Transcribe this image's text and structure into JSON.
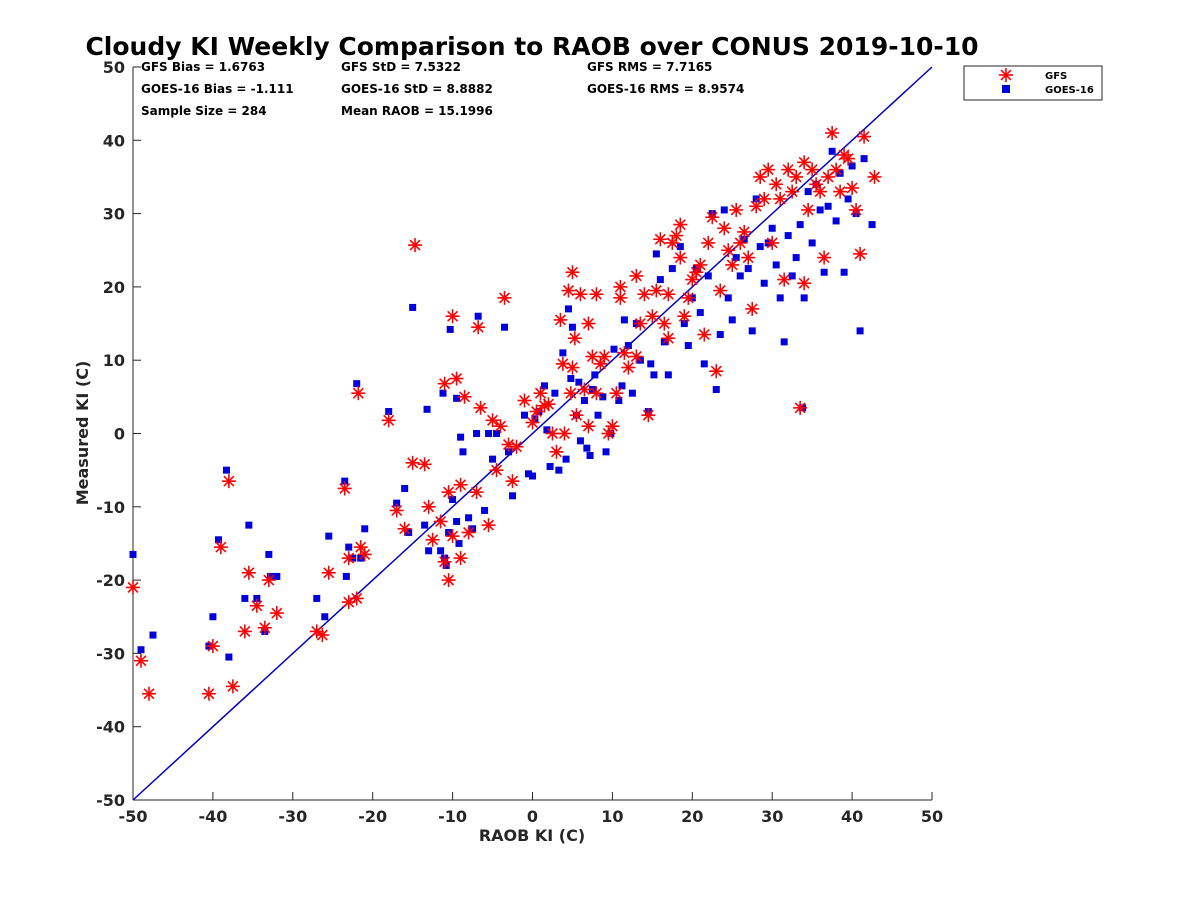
{
  "chart_data": {
    "type": "scatter",
    "title": "Cloudy KI Weekly Comparison to RAOB over CONUS 2019-10-10",
    "xlabel": "RAOB KI (C)",
    "ylabel": "Measured KI (C)",
    "xlim": [
      -50,
      50
    ],
    "ylim": [
      -50,
      50
    ],
    "x_ticks": [
      "-50",
      "-40",
      "-30",
      "-20",
      "-10",
      "0",
      "10",
      "20",
      "30",
      "40",
      "50"
    ],
    "y_ticks": [
      "50",
      "40",
      "30",
      "20",
      "10",
      "0",
      "-10",
      "-20",
      "-30",
      "-40",
      "-50"
    ],
    "legend_position": "outside-top-right",
    "stats": {
      "gfs_bias": "GFS Bias = 1.6763",
      "gfs_std": "GFS StD = 7.5322",
      "gfs_rms": "GFS RMS = 7.7165",
      "goes_bias": "GOES-16 Bias = -1.111",
      "goes_std": "GOES-16 StD = 8.8882",
      "goes_rms": "GOES-16 RMS = 8.9574",
      "sample_size": "Sample Size = 284",
      "mean_raob": "Mean RAOB = 15.1996"
    },
    "reference_line": {
      "x": [
        -50,
        50
      ],
      "y": [
        -50,
        50
      ],
      "color": "#0000cc"
    },
    "series": [
      {
        "name": "GFS",
        "marker": "asterisk",
        "color": "#ff0000",
        "points": [
          [
            -50,
            -21
          ],
          [
            -49,
            -31
          ],
          [
            -48,
            -35.5
          ],
          [
            -40.5,
            -35.5
          ],
          [
            -40,
            -29
          ],
          [
            -39,
            -15.5
          ],
          [
            -38,
            -6.5
          ],
          [
            -37.5,
            -34.5
          ],
          [
            -36,
            -27
          ],
          [
            -35.5,
            -19
          ],
          [
            -34.5,
            -23.5
          ],
          [
            -33.5,
            -26.5
          ],
          [
            -33,
            -20
          ],
          [
            -32,
            -24.5
          ],
          [
            -27,
            -27
          ],
          [
            -26.3,
            -27.5
          ],
          [
            -25.5,
            -19
          ],
          [
            -23.5,
            -7.5
          ],
          [
            -23,
            -17
          ],
          [
            -23,
            -23
          ],
          [
            -22,
            -22.5
          ],
          [
            -21.8,
            5.5
          ],
          [
            -21.5,
            -15.5
          ],
          [
            -21,
            -16.5
          ],
          [
            -18,
            1.8
          ],
          [
            -17,
            -10.5
          ],
          [
            -16,
            -13
          ],
          [
            -15,
            -4
          ],
          [
            -14.7,
            25.7
          ],
          [
            -13.5,
            -4.2
          ],
          [
            -13,
            -10
          ],
          [
            -12.5,
            -14.5
          ],
          [
            -11.5,
            -12
          ],
          [
            -11,
            -17.5
          ],
          [
            -11,
            6.8
          ],
          [
            -10.5,
            -20
          ],
          [
            -10.5,
            -8
          ],
          [
            -10,
            16
          ],
          [
            -10,
            -14
          ],
          [
            -9.5,
            7.5
          ],
          [
            -9,
            -17
          ],
          [
            -9,
            -7
          ],
          [
            -8.5,
            5
          ],
          [
            -8,
            -13.5
          ],
          [
            -7,
            -8
          ],
          [
            -6.8,
            14.5
          ],
          [
            -6.5,
            3.5
          ],
          [
            -5.5,
            -12.5
          ],
          [
            -5,
            1.8
          ],
          [
            -4.5,
            -5
          ],
          [
            -4,
            1
          ],
          [
            -3.5,
            18.5
          ],
          [
            -3,
            -1.5
          ],
          [
            -2.5,
            -6.5
          ],
          [
            -2,
            -1.8
          ],
          [
            -1,
            4.5
          ],
          [
            0,
            1.5
          ],
          [
            0.5,
            3
          ],
          [
            1,
            5.5
          ],
          [
            1.5,
            3.8
          ],
          [
            2,
            4
          ],
          [
            2.5,
            0
          ],
          [
            3,
            -2.5
          ],
          [
            3.5,
            15.5
          ],
          [
            3.8,
            9.5
          ],
          [
            4,
            0
          ],
          [
            4.5,
            19.5
          ],
          [
            4.8,
            5.5
          ],
          [
            5,
            22
          ],
          [
            5,
            9
          ],
          [
            5.3,
            13
          ],
          [
            5.5,
            2.5
          ],
          [
            6,
            19
          ],
          [
            6.5,
            6
          ],
          [
            7,
            1
          ],
          [
            7,
            15
          ],
          [
            7.5,
            10.5
          ],
          [
            8,
            19
          ],
          [
            8,
            5.5
          ],
          [
            8.5,
            9.5
          ],
          [
            9,
            10.5
          ],
          [
            9.5,
            0
          ],
          [
            10,
            1
          ],
          [
            10.5,
            5.5
          ],
          [
            11,
            18.5
          ],
          [
            11,
            20
          ],
          [
            11.5,
            11
          ],
          [
            12,
            9
          ],
          [
            13,
            21.5
          ],
          [
            13,
            10.5
          ],
          [
            13.5,
            15
          ],
          [
            14,
            19
          ],
          [
            14.5,
            2.5
          ],
          [
            15,
            16
          ],
          [
            15.5,
            19.5
          ],
          [
            16,
            26.5
          ],
          [
            16.5,
            15
          ],
          [
            17,
            13
          ],
          [
            17,
            19
          ],
          [
            17.5,
            26
          ],
          [
            18,
            27
          ],
          [
            18.5,
            28.5
          ],
          [
            18.5,
            24
          ],
          [
            19,
            16
          ],
          [
            19.5,
            18.5
          ],
          [
            20,
            21
          ],
          [
            20.5,
            22
          ],
          [
            21,
            23
          ],
          [
            21.5,
            13.5
          ],
          [
            22,
            26
          ],
          [
            22.5,
            29.5
          ],
          [
            23,
            8.5
          ],
          [
            23.5,
            19.5
          ],
          [
            24,
            28
          ],
          [
            24.5,
            25
          ],
          [
            25,
            23
          ],
          [
            25.5,
            30.5
          ],
          [
            26,
            26
          ],
          [
            26.5,
            27.5
          ],
          [
            27,
            24
          ],
          [
            27.5,
            17
          ],
          [
            28,
            31
          ],
          [
            28.5,
            35
          ],
          [
            29,
            32
          ],
          [
            29.5,
            36
          ],
          [
            30,
            26
          ],
          [
            30.5,
            34
          ],
          [
            31,
            32
          ],
          [
            31.5,
            21
          ],
          [
            32,
            36
          ],
          [
            32.5,
            33
          ],
          [
            33,
            35
          ],
          [
            33.5,
            3.5
          ],
          [
            34,
            37
          ],
          [
            34,
            20.5
          ],
          [
            34.5,
            30.5
          ],
          [
            35,
            36
          ],
          [
            35.5,
            34
          ],
          [
            36,
            33
          ],
          [
            36.5,
            24
          ],
          [
            37,
            35
          ],
          [
            37.5,
            41
          ],
          [
            38,
            36
          ],
          [
            38.5,
            33
          ],
          [
            39,
            38
          ],
          [
            39.5,
            37.5
          ],
          [
            40,
            33.5
          ],
          [
            40.5,
            30.5
          ],
          [
            41,
            24.5
          ],
          [
            41.5,
            40.5
          ],
          [
            42.8,
            35
          ]
        ]
      },
      {
        "name": "GOES-16",
        "marker": "square",
        "color": "#0000dd",
        "points": [
          [
            -50,
            -16.5
          ],
          [
            -49,
            -29.5
          ],
          [
            -47.5,
            -27.5
          ],
          [
            -40.5,
            -29
          ],
          [
            -40,
            -25
          ],
          [
            -39.3,
            -14.5
          ],
          [
            -38.3,
            -5
          ],
          [
            -38,
            -30.5
          ],
          [
            -36,
            -22.5
          ],
          [
            -35.5,
            -12.5
          ],
          [
            -34.5,
            -22.5
          ],
          [
            -33.5,
            -27
          ],
          [
            -33,
            -16.5
          ],
          [
            -32.8,
            -19.5
          ],
          [
            -32,
            -19.5
          ],
          [
            -27,
            -22.5
          ],
          [
            -26,
            -25
          ],
          [
            -25.5,
            -14
          ],
          [
            -23.5,
            -6.5
          ],
          [
            -23.3,
            -19.5
          ],
          [
            -23,
            -15.5
          ],
          [
            -22.5,
            -17
          ],
          [
            -22,
            6.8
          ],
          [
            -21.5,
            -17
          ],
          [
            -21,
            -13
          ],
          [
            -18,
            3
          ],
          [
            -17,
            -9.5
          ],
          [
            -16,
            -7.5
          ],
          [
            -15.5,
            -13.5
          ],
          [
            -15,
            17.2
          ],
          [
            -13.5,
            -12.5
          ],
          [
            -13.2,
            3.3
          ],
          [
            -13,
            -16
          ],
          [
            -11.5,
            -16
          ],
          [
            -11,
            -17
          ],
          [
            -11.2,
            5.5
          ],
          [
            -10.8,
            -18
          ],
          [
            -10.5,
            -13.5
          ],
          [
            -10.3,
            14.2
          ],
          [
            -10,
            -9
          ],
          [
            -9.5,
            -12
          ],
          [
            -9.5,
            4.8
          ],
          [
            -9.2,
            -15
          ],
          [
            -9,
            -0.5
          ],
          [
            -8.7,
            -2.5
          ],
          [
            -8,
            -11.5
          ],
          [
            -7.5,
            -13
          ],
          [
            -7,
            0
          ],
          [
            -6.8,
            16
          ],
          [
            -6,
            -10.5
          ],
          [
            -5.5,
            0
          ],
          [
            -5,
            -3.5
          ],
          [
            -4.5,
            0
          ],
          [
            -3.5,
            14.5
          ],
          [
            -3,
            -2.5
          ],
          [
            -2.5,
            -8.5
          ],
          [
            -1,
            2.5
          ],
          [
            -0.5,
            -5.5
          ],
          [
            0,
            -5.8
          ],
          [
            0.3,
            2
          ],
          [
            0.8,
            3
          ],
          [
            1.5,
            6.5
          ],
          [
            1.8,
            0.5
          ],
          [
            2.2,
            -4.5
          ],
          [
            2.8,
            5.5
          ],
          [
            3.3,
            -5
          ],
          [
            3.8,
            11
          ],
          [
            4.2,
            -3.5
          ],
          [
            4.5,
            17
          ],
          [
            4.8,
            7.5
          ],
          [
            5,
            14.5
          ],
          [
            5.5,
            2.5
          ],
          [
            5.8,
            7
          ],
          [
            6,
            -1
          ],
          [
            6.5,
            4.5
          ],
          [
            6.8,
            -2
          ],
          [
            7.2,
            -3
          ],
          [
            7.5,
            6
          ],
          [
            7.8,
            8
          ],
          [
            8.2,
            2.5
          ],
          [
            8.8,
            5
          ],
          [
            9.2,
            -2.5
          ],
          [
            9.8,
            0
          ],
          [
            10.2,
            11.5
          ],
          [
            10.8,
            4.5
          ],
          [
            11.2,
            6.5
          ],
          [
            11.5,
            15.5
          ],
          [
            12,
            12
          ],
          [
            12.5,
            5.5
          ],
          [
            13,
            15
          ],
          [
            13.5,
            10
          ],
          [
            14.5,
            3
          ],
          [
            14.8,
            9.5
          ],
          [
            15.2,
            8
          ],
          [
            15.5,
            24.5
          ],
          [
            16,
            21
          ],
          [
            16.5,
            12.5
          ],
          [
            17,
            8
          ],
          [
            17.5,
            22.5
          ],
          [
            18.5,
            25.5
          ],
          [
            19,
            15
          ],
          [
            19.5,
            12
          ],
          [
            20,
            18.5
          ],
          [
            20.5,
            22.5
          ],
          [
            21,
            16.5
          ],
          [
            21.5,
            9.5
          ],
          [
            22,
            21.5
          ],
          [
            22.5,
            30
          ],
          [
            23,
            6
          ],
          [
            23.5,
            13.5
          ],
          [
            24,
            30.5
          ],
          [
            24.5,
            18.5
          ],
          [
            25,
            15.5
          ],
          [
            25.5,
            24
          ],
          [
            26,
            21.5
          ],
          [
            26.5,
            26.5
          ],
          [
            27,
            22.5
          ],
          [
            27.5,
            14
          ],
          [
            28,
            32
          ],
          [
            28.5,
            25.5
          ],
          [
            29,
            20.5
          ],
          [
            29.5,
            26
          ],
          [
            30,
            28
          ],
          [
            30.5,
            23
          ],
          [
            31,
            18.5
          ],
          [
            31.5,
            12.5
          ],
          [
            32,
            27
          ],
          [
            32.5,
            21.5
          ],
          [
            33,
            24
          ],
          [
            33.5,
            28.5
          ],
          [
            33.8,
            3.5
          ],
          [
            34,
            18.5
          ],
          [
            34.5,
            33
          ],
          [
            35,
            26
          ],
          [
            35.5,
            34
          ],
          [
            36,
            30.5
          ],
          [
            36.5,
            22
          ],
          [
            37,
            31
          ],
          [
            37.5,
            38.5
          ],
          [
            38,
            29
          ],
          [
            38.5,
            35.5
          ],
          [
            39,
            22
          ],
          [
            39.5,
            32
          ],
          [
            40,
            36.5
          ],
          [
            40.5,
            30
          ],
          [
            41,
            14
          ],
          [
            41.5,
            37.5
          ],
          [
            42.5,
            28.5
          ]
        ]
      }
    ]
  }
}
